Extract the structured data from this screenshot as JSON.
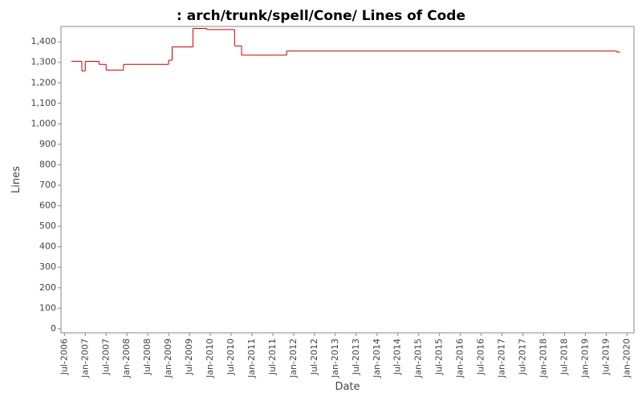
{
  "chart_data": {
    "type": "line",
    "title": ": arch/trunk/spell/Cone/ Lines of Code",
    "x_label": "Date",
    "y_label": "Lines",
    "x": [
      "2006-09",
      "2006-12",
      "2007-01",
      "2007-05",
      "2007-07",
      "2007-12",
      "2009-01",
      "2009-02",
      "2009-08",
      "2009-12",
      "2010-08",
      "2010-10",
      "2011-11",
      "2019-10",
      "2019-11"
    ],
    "series": [
      {
        "name": "Lines",
        "color": "#cc0000",
        "values": [
          1305,
          1258,
          1305,
          1290,
          1262,
          1290,
          1310,
          1375,
          1465,
          1460,
          1380,
          1335,
          1355,
          1350,
          1350
        ]
      }
    ],
    "step": true,
    "xlim": [
      "2006-06",
      "2020-03"
    ],
    "xticks": [
      {
        "value": "2006-07",
        "label": "Jul-2006"
      },
      {
        "value": "2007-01",
        "label": "Jan-2007"
      },
      {
        "value": "2007-07",
        "label": "Jul-2007"
      },
      {
        "value": "2008-01",
        "label": "Jan-2008"
      },
      {
        "value": "2008-07",
        "label": "Jul-2008"
      },
      {
        "value": "2009-01",
        "label": "Jan-2009"
      },
      {
        "value": "2009-07",
        "label": "Jul-2009"
      },
      {
        "value": "2010-01",
        "label": "Jan-2010"
      },
      {
        "value": "2010-07",
        "label": "Jul-2010"
      },
      {
        "value": "2011-01",
        "label": "Jan-2011"
      },
      {
        "value": "2011-07",
        "label": "Jul-2011"
      },
      {
        "value": "2012-01",
        "label": "Jan-2012"
      },
      {
        "value": "2012-07",
        "label": "Jul-2012"
      },
      {
        "value": "2013-01",
        "label": "Jan-2013"
      },
      {
        "value": "2013-07",
        "label": "Jul-2013"
      },
      {
        "value": "2014-01",
        "label": "Jan-2014"
      },
      {
        "value": "2014-07",
        "label": "Jul-2014"
      },
      {
        "value": "2015-01",
        "label": "Jan-2015"
      },
      {
        "value": "2015-07",
        "label": "Jul-2015"
      },
      {
        "value": "2016-01",
        "label": "Jan-2016"
      },
      {
        "value": "2016-07",
        "label": "Jul-2016"
      },
      {
        "value": "2017-01",
        "label": "Jan-2017"
      },
      {
        "value": "2017-07",
        "label": "Jul-2017"
      },
      {
        "value": "2018-01",
        "label": "Jan-2018"
      },
      {
        "value": "2018-07",
        "label": "Jul-2018"
      },
      {
        "value": "2019-01",
        "label": "Jan-2019"
      },
      {
        "value": "2019-07",
        "label": "Jul-2019"
      },
      {
        "value": "2020-01",
        "label": "Jan-2020"
      }
    ],
    "ylim": [
      -20,
      1475
    ],
    "yticks": [
      0,
      100,
      200,
      300,
      400,
      500,
      600,
      700,
      800,
      900,
      {
        "value": 1000,
        "label": "1,000"
      },
      {
        "value": 1100,
        "label": "1,100"
      },
      {
        "value": 1200,
        "label": "1,200"
      },
      {
        "value": 1300,
        "label": "1,300"
      },
      {
        "value": 1400,
        "label": "1,400"
      }
    ],
    "grid": false
  }
}
